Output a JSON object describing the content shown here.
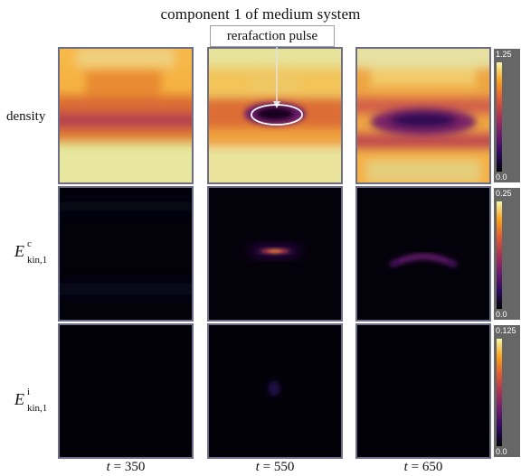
{
  "title": "component 1 of medium system",
  "annotation": "rerafaction pulse",
  "rows": [
    {
      "label": "density",
      "colorbar": {
        "max": "1.25",
        "min": "0.0"
      }
    },
    {
      "label_base": "E",
      "label_sup": "c",
      "label_sub": "kin,1",
      "colorbar": {
        "max": "0.25",
        "min": "0.0"
      }
    },
    {
      "label_base": "E",
      "label_sup": "i",
      "label_sub": "kin,1",
      "colorbar": {
        "max": "0.125",
        "min": "0.0"
      }
    }
  ],
  "columns": [
    {
      "var": "t",
      "eq": " = ",
      "value": "350"
    },
    {
      "var": "t",
      "eq": " = ",
      "value": "550"
    },
    {
      "var": "t",
      "eq": " = ",
      "value": "650"
    }
  ],
  "colors": {
    "panel_border": "#6e6f86",
    "colorbar_bg": "#666666",
    "callout_line": "#cfd3d8",
    "colormap": [
      "#000004",
      "#2b0a5e",
      "#6a1b6e",
      "#a83255",
      "#e35933",
      "#f9a31c",
      "#f4f6a6"
    ]
  }
}
